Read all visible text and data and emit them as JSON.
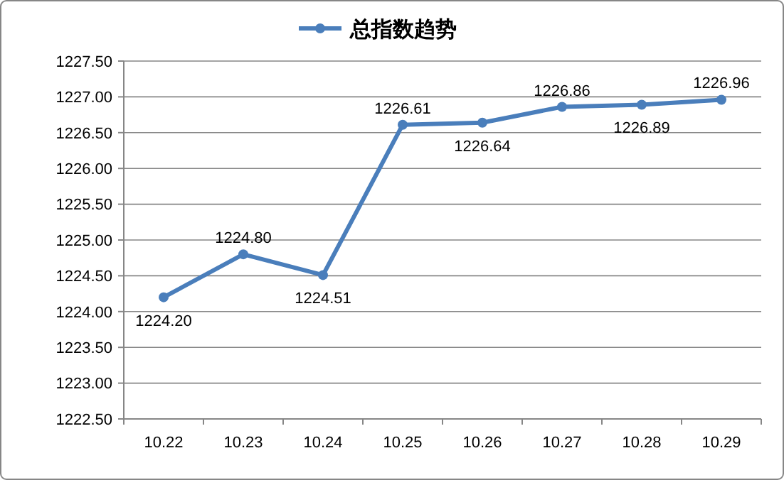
{
  "chart_data": {
    "type": "line",
    "categories": [
      "10.22",
      "10.23",
      "10.24",
      "10.25",
      "10.26",
      "10.27",
      "10.28",
      "10.29"
    ],
    "series": [
      {
        "name": "总指数趋势",
        "color": "#4a7ebb",
        "values": [
          1224.2,
          1224.8,
          1224.51,
          1226.61,
          1226.64,
          1226.86,
          1226.89,
          1226.96
        ],
        "value_labels": [
          "1224.20",
          "1224.80",
          "1224.51",
          "1226.61",
          "1226.64",
          "1226.86",
          "1226.89",
          "1226.96"
        ]
      }
    ],
    "ylim": [
      1222.5,
      1227.5
    ],
    "yticks": [
      {
        "value": 1222.5,
        "label": "1222.50"
      },
      {
        "value": 1223,
        "label": "1223.00"
      },
      {
        "value": 1223.5,
        "label": "1223.50"
      },
      {
        "value": 1224,
        "label": "1224.00"
      },
      {
        "value": 1224.5,
        "label": "1224.50"
      },
      {
        "value": 1225,
        "label": "1225.00"
      },
      {
        "value": 1225.5,
        "label": "1225.50"
      },
      {
        "value": 1226,
        "label": "1226.00"
      },
      {
        "value": 1226.5,
        "label": "1226.50"
      },
      {
        "value": 1227,
        "label": "1227.00"
      },
      {
        "value": 1227.5,
        "label": "1227.50"
      }
    ],
    "grid": "y",
    "legend": "top",
    "marker": "circle",
    "line_style": "solid"
  }
}
